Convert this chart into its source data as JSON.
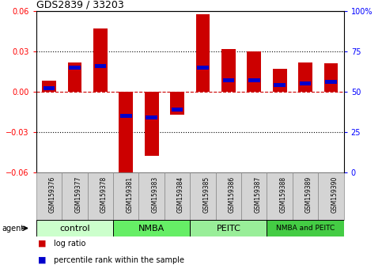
{
  "title": "GDS2839 / 33203",
  "samples": [
    "GSM159376",
    "GSM159377",
    "GSM159378",
    "GSM159381",
    "GSM159383",
    "GSM159384",
    "GSM159385",
    "GSM159386",
    "GSM159387",
    "GSM159388",
    "GSM159389",
    "GSM159390"
  ],
  "log_ratios": [
    0.008,
    0.022,
    0.047,
    -0.062,
    -0.048,
    -0.017,
    0.058,
    0.032,
    0.03,
    0.017,
    0.022,
    0.021
  ],
  "percentile_ranks": [
    52,
    65,
    66,
    35,
    34,
    39,
    65,
    57,
    57,
    54,
    55,
    56
  ],
  "groups": [
    {
      "label": "control",
      "color": "#ccffcc",
      "samples": [
        0,
        1,
        2
      ]
    },
    {
      "label": "NMBA",
      "color": "#66ee66",
      "samples": [
        3,
        4,
        5
      ]
    },
    {
      "label": "PEITC",
      "color": "#99ee99",
      "samples": [
        6,
        7,
        8
      ]
    },
    {
      "label": "NMBA and PEITC",
      "color": "#44cc44",
      "samples": [
        9,
        10,
        11
      ]
    }
  ],
  "ylim": [
    -0.06,
    0.06
  ],
  "yticks_left": [
    -0.06,
    -0.03,
    0,
    0.03,
    0.06
  ],
  "yticks_right_labels": [
    "0",
    "25",
    "50",
    "75",
    "100%"
  ],
  "bar_color": "#cc0000",
  "percentile_color": "#0000cc",
  "bar_width": 0.55,
  "percentile_bar_width": 0.45,
  "percentile_bar_height": 0.003,
  "agent_label": "agent",
  "legend_log_ratio": "log ratio",
  "legend_percentile": "percentile rank within the sample",
  "sample_label_fontsize": 5.5,
  "group_label_fontsize": 8,
  "group_label_fontsize_small": 6.5
}
